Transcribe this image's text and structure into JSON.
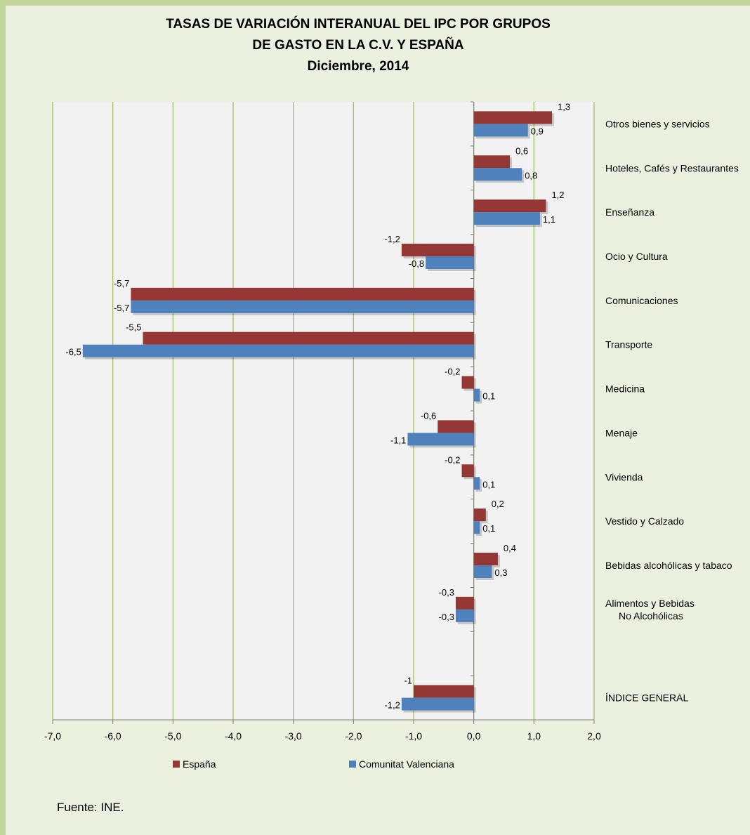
{
  "chart_data": {
    "type": "bar",
    "orientation": "horizontal",
    "title_lines": [
      "TASAS DE VARIACIÓN INTERANUAL DEL IPC POR GRUPOS",
      "DE GASTO EN LA C.V. Y ESPAÑA",
      "Diciembre, 2014"
    ],
    "xlim": [
      -7.0,
      2.0
    ],
    "x_ticks": [
      "-7,0",
      "-6,0",
      "-5,0",
      "-4,0",
      "-3,0",
      "-2,0",
      "-1,0",
      "0,0",
      "1,0",
      "2,0"
    ],
    "grid": "vertical",
    "legend_position": "bottom",
    "categories": [
      [
        "Otros bienes y servicios"
      ],
      [
        "Hoteles, Cafés y Restaurantes"
      ],
      [
        "Enseñanza"
      ],
      [
        "Ocio y Cultura"
      ],
      [
        "Comunicaciones"
      ],
      [
        "Transporte"
      ],
      [
        "Medicina"
      ],
      [
        "Menaje"
      ],
      [
        "Vivienda"
      ],
      [
        "Vestido y Calzado"
      ],
      [
        "Bebidas alcohólicas y tabaco"
      ],
      [
        "Alimentos y Bebidas",
        "No Alcohólicas"
      ],
      [
        ""
      ],
      [
        "ÍNDICE GENERAL"
      ]
    ],
    "series": [
      {
        "name": "España",
        "color": "#953735",
        "values": [
          1.3,
          0.6,
          1.2,
          -1.2,
          -5.7,
          -5.5,
          -0.2,
          -0.6,
          -0.2,
          0.2,
          0.4,
          -0.3,
          null,
          -1
        ],
        "labels": [
          "1,3",
          "0,6",
          "1,2",
          "-1,2",
          "-5,7",
          "-5,5",
          "-0,2",
          "-0,6",
          "-0,2",
          "0,2",
          "0,4",
          "-0,3",
          "",
          "-1"
        ]
      },
      {
        "name": "Comunitat Valenciana",
        "color": "#4f81bd",
        "values": [
          0.9,
          0.8,
          1.1,
          -0.8,
          -5.7,
          -6.5,
          0.1,
          -1.1,
          0.1,
          0.1,
          0.3,
          -0.3,
          null,
          -1.2
        ],
        "labels": [
          "0,9",
          "0,8",
          "1,1",
          "-0,8",
          "-5,7",
          "-6,5",
          "0,1",
          "-1,1",
          "0,1",
          "0,1",
          "0,3",
          "-0,3",
          "",
          "-1,2"
        ]
      }
    ]
  },
  "source": "Fuente: INE."
}
